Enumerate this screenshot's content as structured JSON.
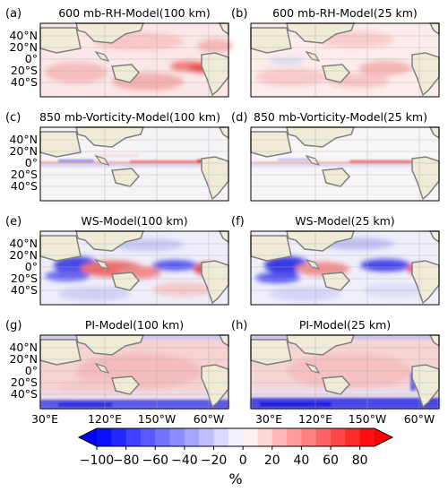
{
  "chart_data": {
    "type": "heatmap",
    "x_ticks": [
      "30°E",
      "120°E",
      "150°W",
      "60°W"
    ],
    "y_ticks": [
      "40°N",
      "20°N",
      "0°",
      "20°S",
      "40°S"
    ],
    "panels": [
      {
        "label": "(a)",
        "title": "600 mb-RH-Model(100 km)"
      },
      {
        "label": "(b)",
        "title": "600 mb-RH-Model(25 km)"
      },
      {
        "label": "(c)",
        "title": "850 mb-Vorticity-Model(100 km)"
      },
      {
        "label": "(d)",
        "title": "850 mb-Vorticity-Model(25 km)"
      },
      {
        "label": "(e)",
        "title": "WS-Model(100 km)"
      },
      {
        "label": "(f)",
        "title": "WS-Model(25 km)"
      },
      {
        "label": "(g)",
        "title": "PI-Model(100 km)"
      },
      {
        "label": "(h)",
        "title": "PI-Model(25 km)"
      }
    ],
    "colorbar": {
      "ticks": [
        "−100",
        "−80",
        "−60",
        "−40",
        "−20",
        "0",
        "20",
        "40",
        "60",
        "80"
      ],
      "unit": "%",
      "range": [
        -100,
        90
      ],
      "negative_color": "#0000ff",
      "positive_color": "#ff0000"
    }
  },
  "colors": {
    "land": "#efebd6",
    "coast": "#7f7f7f",
    "grid": "#aaaaaa"
  }
}
